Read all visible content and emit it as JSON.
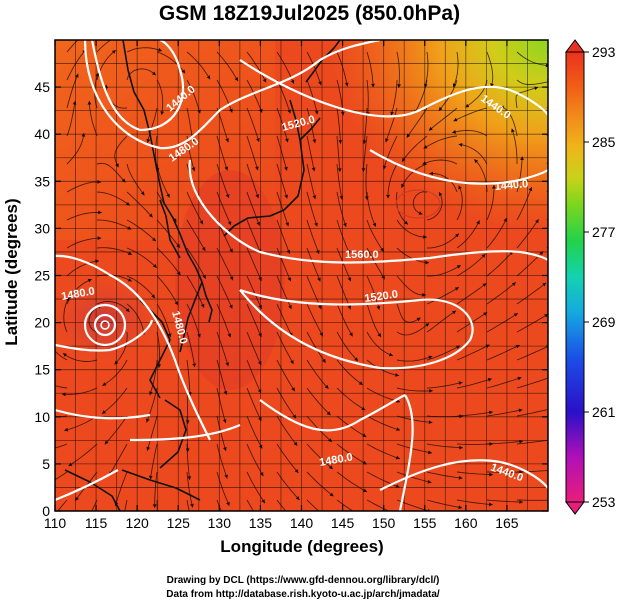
{
  "title": "GSM 18Z19Jul2025 (850.0hPa)",
  "xaxis": {
    "label": "Longitude (degrees)",
    "range": [
      110,
      170
    ],
    "ticks": [
      110,
      115,
      120,
      125,
      130,
      135,
      140,
      145,
      150,
      155,
      160,
      165
    ]
  },
  "yaxis": {
    "label": "Latitude  (degrees)",
    "range": [
      0,
      50
    ],
    "ticks": [
      0,
      5,
      10,
      15,
      20,
      25,
      30,
      35,
      40,
      45
    ]
  },
  "colorbar": {
    "min": 253,
    "max": 293,
    "labels": [
      293,
      285,
      277,
      269,
      261,
      253
    ],
    "colors": [
      "#e81e7a",
      "#b010b8",
      "#2a10c8",
      "#1b4fe6",
      "#15a8e0",
      "#14d2b0",
      "#22d24a",
      "#7bd61e",
      "#c8d21a",
      "#f0b41a",
      "#f2881a",
      "#f05a16",
      "#ea3220"
    ]
  },
  "contours": [
    {
      "label": "1440.0"
    },
    {
      "label": "1480.0"
    },
    {
      "label": "1520.0"
    },
    {
      "label": "1560.0"
    },
    {
      "label": "1520.0"
    },
    {
      "label": "1440.0"
    },
    {
      "label": "1440.0"
    },
    {
      "label": "1480.0"
    },
    {
      "label": "1480.0"
    },
    {
      "label": "1480.0"
    },
    {
      "label": "1440.0"
    }
  ],
  "credits": {
    "line1": "Drawing by DCL (https://www.gfd-dennou.org/library/dcl/)",
    "line2": "Data from http://database.rish.kyoto-u.ac.jp/arch/jmadata/"
  }
}
